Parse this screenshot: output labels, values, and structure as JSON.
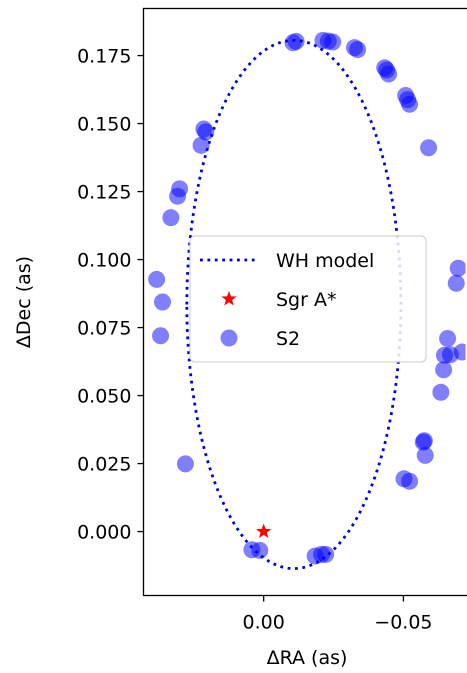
{
  "chart_data": {
    "type": "scatter",
    "xlabel": "ΔRA (as)",
    "ylabel": "ΔDec (as)",
    "xlim": [
      0.043,
      -0.074
    ],
    "ylim": [
      -0.0235,
      0.1923
    ],
    "x_inverted": true,
    "grid": false,
    "legend_placement": "center",
    "xticks": [
      {
        "value": 0.0,
        "label": "0.00"
      },
      {
        "value": -0.05,
        "label": "−0.05"
      }
    ],
    "yticks": [
      {
        "value": 0.0,
        "label": "0.000"
      },
      {
        "value": 0.025,
        "label": "0.025"
      },
      {
        "value": 0.05,
        "label": "0.050"
      },
      {
        "value": 0.075,
        "label": "0.075"
      },
      {
        "value": 0.1,
        "label": "0.100"
      },
      {
        "value": 0.125,
        "label": "0.125"
      },
      {
        "value": 0.15,
        "label": "0.150"
      },
      {
        "value": 0.175,
        "label": "0.175"
      }
    ],
    "series": [
      {
        "name": "WH model",
        "kind": "line",
        "style": "dotted",
        "color": "#0000dd",
        "ellipse": {
          "center_x": -0.0108,
          "center_y": 0.0835,
          "semi_x": 0.0383,
          "semi_y": 0.0971
        }
      },
      {
        "name": "Sgr A*",
        "kind": "marker",
        "marker": "star",
        "color": "#ff0000",
        "points": [
          {
            "x": 0.0,
            "y": 0.0
          }
        ]
      },
      {
        "name": "S2",
        "kind": "scatter",
        "color": "#0000ff",
        "opacity": 0.5,
        "points": [
          {
            "x": -0.0105,
            "y": 0.1797
          },
          {
            "x": -0.0116,
            "y": 0.1802
          },
          {
            "x": -0.0212,
            "y": 0.1806
          },
          {
            "x": -0.0231,
            "y": 0.1803
          },
          {
            "x": -0.0247,
            "y": 0.18
          },
          {
            "x": -0.0325,
            "y": 0.1779
          },
          {
            "x": -0.0336,
            "y": 0.1772
          },
          {
            "x": -0.0433,
            "y": 0.1705
          },
          {
            "x": -0.044,
            "y": 0.1697
          },
          {
            "x": -0.0447,
            "y": 0.1682
          },
          {
            "x": -0.0508,
            "y": 0.1603
          },
          {
            "x": -0.0515,
            "y": 0.1588
          },
          {
            "x": -0.0522,
            "y": 0.1571
          },
          {
            "x": -0.059,
            "y": 0.1411
          },
          {
            "x": 0.0214,
            "y": 0.148
          },
          {
            "x": 0.0207,
            "y": 0.1469
          },
          {
            "x": 0.0224,
            "y": 0.142
          },
          {
            "x": 0.0301,
            "y": 0.126
          },
          {
            "x": 0.0308,
            "y": 0.1233
          },
          {
            "x": 0.0332,
            "y": 0.1154
          },
          {
            "x": 0.0383,
            "y": 0.0927
          },
          {
            "x": 0.0362,
            "y": 0.0844
          },
          {
            "x": 0.0369,
            "y": 0.072
          },
          {
            "x": 0.028,
            "y": 0.0249
          },
          {
            "x": 0.0042,
            "y": -0.0067
          },
          {
            "x": 0.0014,
            "y": -0.0069
          },
          {
            "x": -0.0184,
            "y": -0.009
          },
          {
            "x": -0.0207,
            "y": -0.0084
          },
          {
            "x": -0.0222,
            "y": -0.0084
          },
          {
            "x": -0.0502,
            "y": 0.0194
          },
          {
            "x": -0.0522,
            "y": 0.0185
          },
          {
            "x": -0.0578,
            "y": 0.028
          },
          {
            "x": -0.0571,
            "y": 0.0329
          },
          {
            "x": -0.0575,
            "y": 0.0334
          },
          {
            "x": -0.0634,
            "y": 0.0512
          },
          {
            "x": -0.0644,
            "y": 0.0595
          },
          {
            "x": -0.0647,
            "y": 0.0648
          },
          {
            "x": -0.0658,
            "y": 0.071
          },
          {
            "x": -0.0668,
            "y": 0.065
          },
          {
            "x": -0.071,
            "y": 0.066
          },
          {
            "x": -0.0689,
            "y": 0.0913
          },
          {
            "x": -0.0696,
            "y": 0.0968
          }
        ]
      }
    ]
  }
}
